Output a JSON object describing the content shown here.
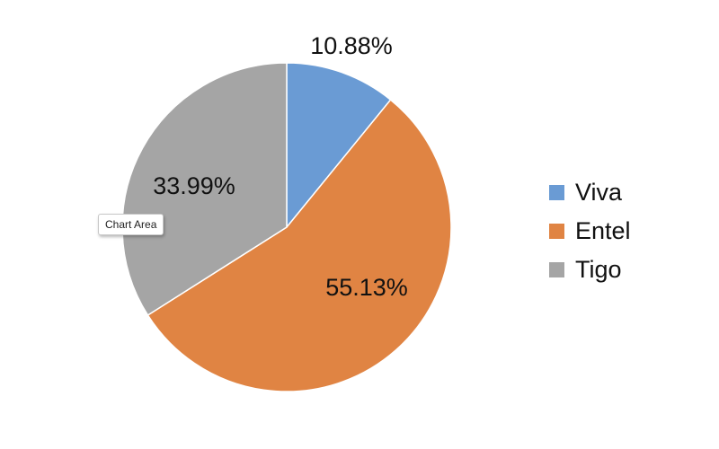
{
  "tooltip": {
    "label": "Chart Area"
  },
  "chart_data": {
    "type": "pie",
    "start_angle_deg": 0,
    "direction": "clockwise",
    "legend_position": "right",
    "title": "",
    "slices": [
      {
        "name": "Viva",
        "value": 10.88,
        "label": "10.88%",
        "color": "#6a9bd4"
      },
      {
        "name": "Entel",
        "value": 55.13,
        "label": "55.13%",
        "color": "#e08443"
      },
      {
        "name": "Tigo",
        "value": 33.99,
        "label": "33.99%",
        "color": "#a5a5a5"
      }
    ]
  }
}
